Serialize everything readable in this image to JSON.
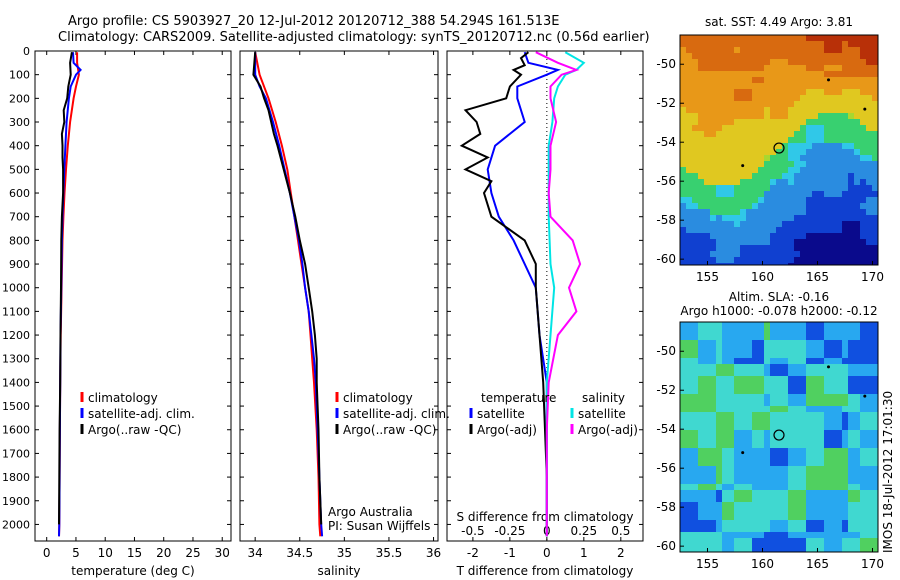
{
  "header": {
    "line1": "Argo profile: CS 5903927_20 12-Jul-2012 20120712_388 54.294S 161.513E",
    "line2": "Climatology: CARS2009. Satellite-adjusted climatology: synTS_20120712.nc (0.56d earlier)"
  },
  "colors": {
    "climatology": "#ff0000",
    "satellite": "#0000ff",
    "argo": "#000000",
    "salinity_sat": "#00e5e5",
    "salinity_argo": "#ff00ff"
  },
  "depth_ticks": [
    "0",
    "100",
    "200",
    "300",
    "400",
    "500",
    "600",
    "700",
    "800",
    "900",
    "1000",
    "1100",
    "1200",
    "1300",
    "1400",
    "1500",
    "1600",
    "1700",
    "1800",
    "1900",
    "2000"
  ],
  "chart_data": [
    {
      "type": "line",
      "xlabel": "temperature (deg C)",
      "xticks": [
        "0",
        "5",
        "10",
        "15",
        "20",
        "25",
        "30"
      ],
      "xlim": [
        -2,
        31.5
      ],
      "ylim": [
        2070,
        0
      ],
      "legend": [
        "climatology",
        "satellite-adj. clim.",
        "Argo(..raw -QC)"
      ],
      "series": [
        {
          "name": "climatology",
          "color": "#ff0000",
          "depth": [
            5,
            50,
            100,
            150,
            200,
            300,
            400,
            500,
            600,
            700,
            800,
            1000,
            1200,
            1400,
            1600,
            1800,
            2000,
            2050
          ],
          "values": [
            5.2,
            5.2,
            5.5,
            5.0,
            4.6,
            4.0,
            3.6,
            3.3,
            3.05,
            2.85,
            2.7,
            2.55,
            2.4,
            2.3,
            2.25,
            2.2,
            2.15,
            2.1
          ]
        },
        {
          "name": "satellite-adj. clim.",
          "color": "#0000ff",
          "depth": [
            5,
            50,
            80,
            100,
            150,
            200,
            300,
            400,
            500,
            600,
            700,
            800,
            1000,
            1200,
            1400,
            1600,
            1800,
            2000,
            2050
          ],
          "values": [
            4.5,
            4.6,
            5.8,
            5.0,
            4.1,
            3.8,
            3.4,
            3.2,
            3.0,
            2.85,
            2.7,
            2.6,
            2.5,
            2.35,
            2.3,
            2.25,
            2.2,
            2.15,
            2.1
          ]
        },
        {
          "name": "Argo(..raw -QC)",
          "color": "#000000",
          "depth": [
            5,
            50,
            100,
            150,
            200,
            250,
            300,
            350,
            400,
            450,
            500,
            600,
            700,
            800,
            1000,
            1200,
            1400,
            1600,
            1800,
            2000
          ],
          "values": [
            4.3,
            4.0,
            4.1,
            3.7,
            3.5,
            2.9,
            3.0,
            2.6,
            2.7,
            2.7,
            2.8,
            2.8,
            2.6,
            2.5,
            2.45,
            2.35,
            2.3,
            2.2,
            2.15,
            2.1
          ]
        }
      ],
      "annotations": []
    },
    {
      "type": "line",
      "xlabel": "salinity",
      "xticks": [
        "34",
        "34.5",
        "35",
        "35.5",
        "36"
      ],
      "xlim": [
        33.83,
        36.05
      ],
      "ylim": [
        2070,
        0
      ],
      "legend": [
        "climatology",
        "satellite-adj. clim.",
        "Argo(..raw -QC)"
      ],
      "series": [
        {
          "name": "climatology",
          "color": "#ff0000",
          "depth": [
            5,
            100,
            200,
            300,
            400,
            500,
            600,
            700,
            800,
            900,
            1000,
            1100,
            1200,
            1300,
            1400,
            1600,
            1800,
            2000,
            2050
          ],
          "values": [
            34.0,
            34.05,
            34.15,
            34.23,
            34.3,
            34.36,
            34.4,
            34.44,
            34.48,
            34.52,
            34.56,
            34.6,
            34.62,
            34.64,
            34.66,
            34.69,
            34.71,
            34.72,
            34.73
          ]
        },
        {
          "name": "satellite-adj. clim.",
          "color": "#0000ff",
          "depth": [
            5,
            100,
            150,
            200,
            300,
            400,
            500,
            600,
            700,
            800,
            900,
            1000,
            1100,
            1200,
            1300,
            1400,
            1600,
            1800,
            2000,
            2050
          ],
          "values": [
            34.0,
            34.0,
            34.05,
            34.12,
            34.2,
            34.27,
            34.33,
            34.39,
            34.44,
            34.49,
            34.53,
            34.56,
            34.6,
            34.63,
            34.66,
            34.68,
            34.7,
            34.72,
            34.74,
            34.75
          ]
        },
        {
          "name": "Argo(..raw -QC)",
          "color": "#000000",
          "depth": [
            5,
            100,
            150,
            200,
            250,
            300,
            350,
            400,
            500,
            600,
            700,
            800,
            900,
            1000,
            1100,
            1200,
            1300,
            1400,
            1500,
            1600,
            1800,
            2000
          ],
          "values": [
            34.0,
            33.98,
            34.06,
            34.1,
            34.15,
            34.18,
            34.21,
            34.25,
            34.32,
            34.39,
            34.45,
            34.5,
            34.56,
            34.6,
            34.64,
            34.67,
            34.69,
            34.69,
            34.7,
            34.71,
            34.72,
            34.74
          ]
        }
      ],
      "annotations": [
        "Argo Australia",
        "PI: Susan Wijffels"
      ]
    },
    {
      "type": "line",
      "xlabel": "T difference from climatology",
      "top_label": "S difference from climatology",
      "xticks": [
        "-2",
        "-1",
        "0",
        "1",
        "2"
      ],
      "top_xticks": [
        "-0.5",
        "-0.25",
        "0",
        "0.25",
        "0.5"
      ],
      "xlim": [
        -2.7,
        2.6
      ],
      "ylim": [
        2070,
        0
      ],
      "legend_groups": [
        {
          "title": "temperature",
          "items": [
            "satellite",
            "Argo(-adj)"
          ]
        },
        {
          "title": "salinity",
          "items": [
            "satellite",
            "Argo(-adj)"
          ]
        }
      ],
      "series": [
        {
          "name": "temperature satellite",
          "color": "#0000ff",
          "depth": [
            5,
            50,
            80,
            100,
            150,
            200,
            300,
            400,
            500,
            600,
            700,
            800,
            1000,
            1200,
            1400,
            1600,
            1800,
            2000,
            2050
          ],
          "values": [
            -0.6,
            -0.5,
            0.3,
            0.0,
            -0.8,
            -0.8,
            -0.6,
            -1.4,
            -1.6,
            -1.5,
            -1.3,
            -0.9,
            -0.3,
            -0.2,
            0.0,
            0.0,
            0.0,
            0.0,
            0.0
          ]
        },
        {
          "name": "temperature Argo(-adj)",
          "color": "#000000",
          "depth": [
            5,
            30,
            60,
            80,
            100,
            150,
            200,
            250,
            300,
            350,
            400,
            450,
            500,
            550,
            600,
            700,
            800,
            900,
            1000,
            1200,
            1400,
            1600,
            1800,
            2000,
            2050
          ],
          "values": [
            -0.5,
            -0.7,
            -0.6,
            -0.9,
            -0.7,
            -1.0,
            -1.1,
            -2.2,
            -1.9,
            -1.8,
            -2.3,
            -1.6,
            -2.2,
            -1.5,
            -1.7,
            -1.5,
            -0.6,
            -0.3,
            -0.3,
            -0.2,
            -0.1,
            -0.05,
            0.0,
            0.0,
            0.0
          ]
        },
        {
          "name": "salinity satellite",
          "color": "#00e5e5",
          "depth": [
            5,
            50,
            80,
            100,
            150,
            200,
            300,
            400,
            500,
            700,
            900,
            1000,
            1200,
            1400,
            1600,
            1800,
            2000,
            2050
          ],
          "values": [
            0.5,
            1.0,
            0.8,
            0.5,
            0.3,
            0.2,
            0.15,
            0.05,
            0.05,
            0.05,
            0.1,
            0.2,
            0.1,
            0.0,
            0.0,
            0.0,
            0.0,
            0.0
          ]
        },
        {
          "name": "salinity Argo(-adj)",
          "color": "#ff00ff",
          "depth": [
            5,
            50,
            80,
            100,
            150,
            200,
            300,
            400,
            500,
            600,
            700,
            800,
            900,
            1000,
            1100,
            1200,
            1400,
            1600,
            1800,
            2000,
            2050
          ],
          "values": [
            -0.3,
            0.3,
            0.8,
            0.4,
            0.1,
            0.1,
            0.25,
            0.1,
            0.1,
            0.05,
            0.1,
            0.7,
            0.9,
            0.6,
            0.8,
            0.3,
            0.05,
            0.0,
            0.0,
            0.0,
            0.0
          ]
        }
      ]
    },
    {
      "type": "heatmap",
      "title": "sat. SST: 4.49 Argo: 3.81",
      "xticks": [
        "155",
        "160",
        "165",
        "170"
      ],
      "yticks": [
        "-50",
        "-52",
        "-54",
        "-56",
        "-58",
        "-60"
      ],
      "xlim": [
        152.5,
        170.5
      ],
      "ylim": [
        -60.3,
        -48.5
      ],
      "argo_position": {
        "lon": 161.5,
        "lat": -54.3
      }
    },
    {
      "type": "heatmap",
      "title": "Altim. SLA: -0.16",
      "subtitle": "Argo h1000: -0.078 h2000: -0.12",
      "xticks": [
        "155",
        "160",
        "165",
        "170"
      ],
      "yticks": [
        "-50",
        "-52",
        "-54",
        "-56",
        "-58",
        "-60"
      ],
      "xlim": [
        152.5,
        170.5
      ],
      "ylim": [
        -60.3,
        -48.5
      ],
      "argo_position": {
        "lon": 161.5,
        "lat": -54.3
      }
    }
  ],
  "side_label": "IMOS 18-Jul-2012 17:01:30"
}
